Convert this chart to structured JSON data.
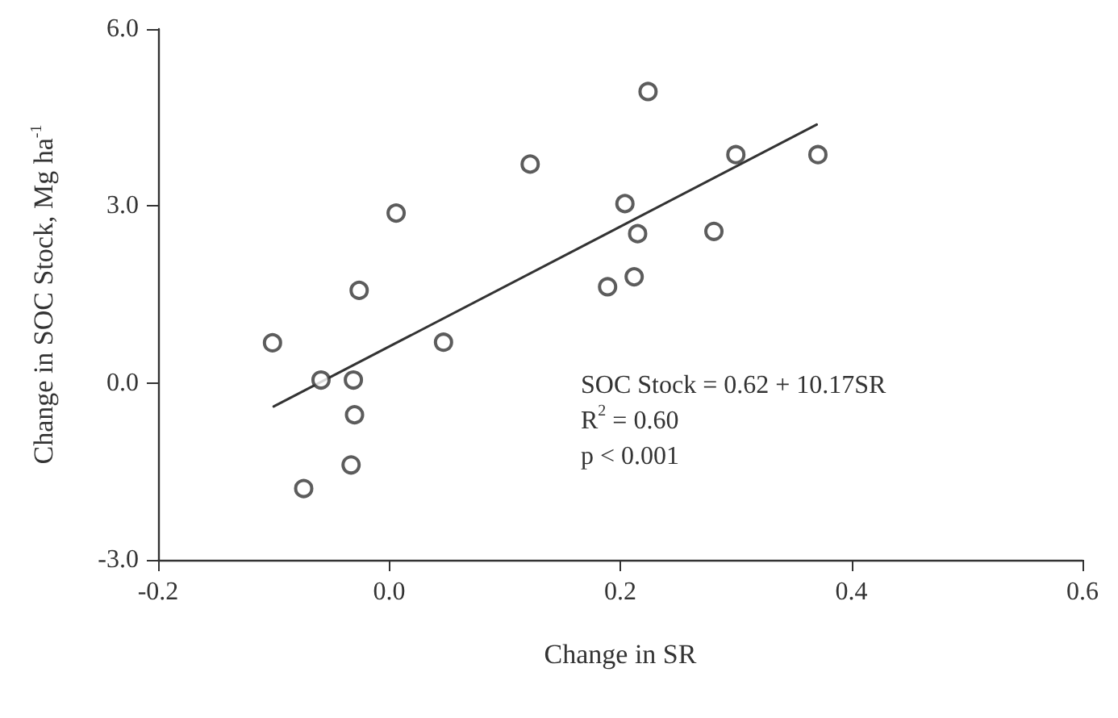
{
  "chart_data": {
    "type": "scatter",
    "xlabel": "Change in SR",
    "ylabel": "Change in SOC Stock, Mg ha$^{-1}$",
    "xlim": [
      -0.2,
      0.6
    ],
    "xticks": [
      {
        "value": -0.2,
        "label": "-0.2"
      },
      {
        "value": 0,
        "label": "0.0"
      },
      {
        "value": 0.2,
        "label": "0.2"
      },
      {
        "value": 0.4,
        "label": "0.4"
      },
      {
        "value": 0.6,
        "label": "0.6"
      }
    ],
    "ylim": [
      -3.0,
      6.0
    ],
    "yticks": [
      {
        "value": -3,
        "label": "-3.0"
      },
      {
        "value": 0,
        "label": "0.0"
      },
      {
        "value": 3,
        "label": "3.0"
      },
      {
        "value": 6,
        "label": "6.0"
      }
    ],
    "grid": false,
    "series": [
      {
        "type": "scatter",
        "marker": "circle",
        "color": "#333333",
        "x": [
          -0.101,
          -0.059,
          -0.031,
          -0.03,
          -0.033,
          -0.074,
          -0.026,
          0.006,
          0.047,
          0.122,
          0.189,
          0.212,
          0.204,
          0.215,
          0.224,
          0.281,
          0.3,
          0.371
        ],
        "values": [
          0.68,
          0.05,
          0.05,
          -0.54,
          -1.39,
          -1.79,
          1.57,
          2.88,
          0.69,
          3.71,
          1.63,
          1.8,
          3.04,
          2.53,
          4.94,
          2.57,
          3.87,
          3.87
        ]
      },
      {
        "type": "line",
        "marker": "none",
        "color": "#333333",
        "x": [
          -0.1,
          0.37
        ],
        "values": [
          -0.4,
          4.38
        ]
      }
    ],
    "annotations": [
      "SOC Stock = 0.62 + 10.17SR",
      "R$^{2}$ = 0.60",
      "p < 0.001"
    ]
  }
}
